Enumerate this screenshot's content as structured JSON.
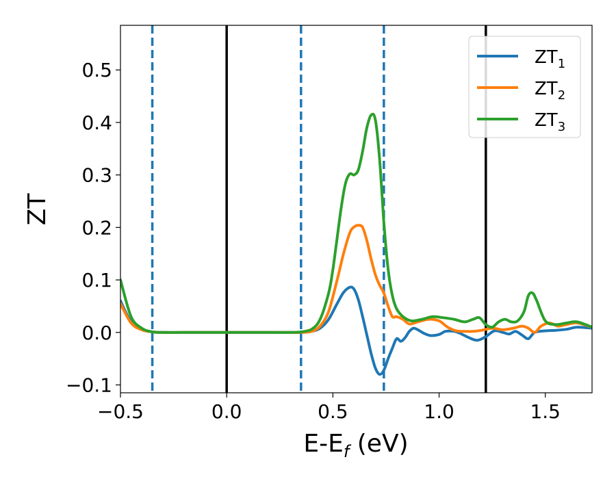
{
  "chart_data": {
    "type": "line",
    "xlabel": {
      "main": "E-E",
      "sub": "f",
      "suffix": " (eV)"
    },
    "ylabel": "ZT",
    "xlim": [
      -0.5,
      1.72
    ],
    "ylim": [
      -0.115,
      0.585
    ],
    "x_ticks": [
      {
        "value": -0.5,
        "label": "−0.5"
      },
      {
        "value": 0.0,
        "label": "0.0"
      },
      {
        "value": 0.5,
        "label": "0.5"
      },
      {
        "value": 1.0,
        "label": "1.0"
      },
      {
        "value": 1.5,
        "label": "1.5"
      }
    ],
    "y_ticks": [
      {
        "value": -0.1,
        "label": "−0.1"
      },
      {
        "value": 0.0,
        "label": "0.0"
      },
      {
        "value": 0.1,
        "label": "0.1"
      },
      {
        "value": 0.2,
        "label": "0.2"
      },
      {
        "value": 0.3,
        "label": "0.3"
      },
      {
        "value": 0.4,
        "label": "0.4"
      },
      {
        "value": 0.5,
        "label": "0.5"
      }
    ],
    "grid": false,
    "legend_position": "top-right",
    "vertical_lines": [
      {
        "x": -0.35,
        "style": "dashed",
        "color": "#1f77b4"
      },
      {
        "x": 0.35,
        "style": "dashed",
        "color": "#1f77b4"
      },
      {
        "x": 0.74,
        "style": "dashed",
        "color": "#1f77b4"
      },
      {
        "x": 0.0,
        "style": "solid",
        "color": "#000000"
      },
      {
        "x": 1.22,
        "style": "solid",
        "color": "#000000"
      }
    ],
    "series": [
      {
        "name": "ZT",
        "sub": "1",
        "color": "#1f77b4",
        "x": [
          -0.5,
          -0.45,
          -0.4,
          -0.35,
          -0.3,
          -0.2,
          0.0,
          0.2,
          0.3,
          0.35,
          0.4,
          0.44,
          0.48,
          0.52,
          0.55,
          0.58,
          0.6,
          0.62,
          0.64,
          0.66,
          0.68,
          0.7,
          0.72,
          0.74,
          0.76,
          0.78,
          0.8,
          0.82,
          0.84,
          0.86,
          0.88,
          0.9,
          0.93,
          0.96,
          1.0,
          1.03,
          1.07,
          1.1,
          1.14,
          1.18,
          1.22,
          1.26,
          1.3,
          1.33,
          1.36,
          1.39,
          1.42,
          1.45,
          1.5,
          1.55,
          1.6,
          1.65,
          1.72
        ],
        "y": [
          0.06,
          0.02,
          0.006,
          0.001,
          0.0,
          0.0,
          0.0,
          0.0,
          0.0,
          0.0,
          0.002,
          0.008,
          0.025,
          0.055,
          0.076,
          0.086,
          0.082,
          0.062,
          0.03,
          -0.005,
          -0.04,
          -0.068,
          -0.08,
          -0.072,
          -0.05,
          -0.03,
          -0.012,
          -0.017,
          -0.01,
          0.002,
          0.008,
          0.005,
          -0.002,
          -0.006,
          -0.004,
          0.002,
          0.002,
          -0.002,
          -0.01,
          -0.015,
          -0.008,
          0.003,
          0.0,
          -0.003,
          0.002,
          -0.005,
          -0.012,
          0.0,
          0.003,
          0.004,
          0.006,
          0.01,
          0.008
        ]
      },
      {
        "name": "ZT",
        "sub": "2",
        "color": "#ff7f0e",
        "x": [
          -0.5,
          -0.45,
          -0.4,
          -0.35,
          -0.3,
          -0.2,
          0.0,
          0.2,
          0.3,
          0.35,
          0.4,
          0.44,
          0.48,
          0.52,
          0.55,
          0.58,
          0.6,
          0.62,
          0.64,
          0.66,
          0.68,
          0.7,
          0.72,
          0.74,
          0.76,
          0.78,
          0.8,
          0.83,
          0.86,
          0.9,
          0.95,
          1.0,
          1.04,
          1.08,
          1.12,
          1.16,
          1.2,
          1.25,
          1.3,
          1.35,
          1.39,
          1.42,
          1.45,
          1.48,
          1.52,
          1.56,
          1.6,
          1.65,
          1.72
        ],
        "y": [
          0.055,
          0.018,
          0.005,
          0.001,
          0.0,
          0.0,
          0.0,
          0.0,
          0.0,
          0.0,
          0.002,
          0.012,
          0.04,
          0.1,
          0.15,
          0.19,
          0.201,
          0.204,
          0.2,
          0.175,
          0.14,
          0.11,
          0.09,
          0.075,
          0.05,
          0.03,
          0.03,
          0.025,
          0.016,
          0.02,
          0.025,
          0.022,
          0.01,
          0.003,
          0.002,
          0.002,
          0.004,
          0.008,
          0.005,
          0.008,
          0.012,
          0.008,
          0.0,
          0.012,
          0.018,
          0.012,
          0.015,
          0.018,
          0.01
        ]
      },
      {
        "name": "ZT",
        "sub": "3",
        "color": "#2ca02c",
        "x": [
          -0.5,
          -0.45,
          -0.4,
          -0.35,
          -0.3,
          -0.2,
          0.0,
          0.2,
          0.3,
          0.35,
          0.4,
          0.44,
          0.48,
          0.5,
          0.52,
          0.54,
          0.56,
          0.58,
          0.6,
          0.62,
          0.64,
          0.66,
          0.68,
          0.7,
          0.72,
          0.74,
          0.76,
          0.78,
          0.8,
          0.83,
          0.87,
          0.92,
          0.97,
          1.02,
          1.07,
          1.12,
          1.16,
          1.19,
          1.22,
          1.25,
          1.28,
          1.31,
          1.34,
          1.37,
          1.4,
          1.42,
          1.44,
          1.46,
          1.5,
          1.55,
          1.6,
          1.65,
          1.72
        ],
        "y": [
          0.1,
          0.03,
          0.008,
          0.001,
          0.0,
          0.0,
          0.0,
          0.0,
          0.0,
          0.001,
          0.006,
          0.025,
          0.075,
          0.12,
          0.18,
          0.24,
          0.285,
          0.302,
          0.3,
          0.31,
          0.345,
          0.39,
          0.414,
          0.405,
          0.33,
          0.21,
          0.12,
          0.07,
          0.045,
          0.03,
          0.022,
          0.025,
          0.03,
          0.028,
          0.025,
          0.02,
          0.025,
          0.028,
          0.015,
          0.01,
          0.02,
          0.025,
          0.02,
          0.022,
          0.04,
          0.07,
          0.075,
          0.06,
          0.022,
          0.015,
          0.018,
          0.02,
          0.01
        ]
      }
    ]
  }
}
